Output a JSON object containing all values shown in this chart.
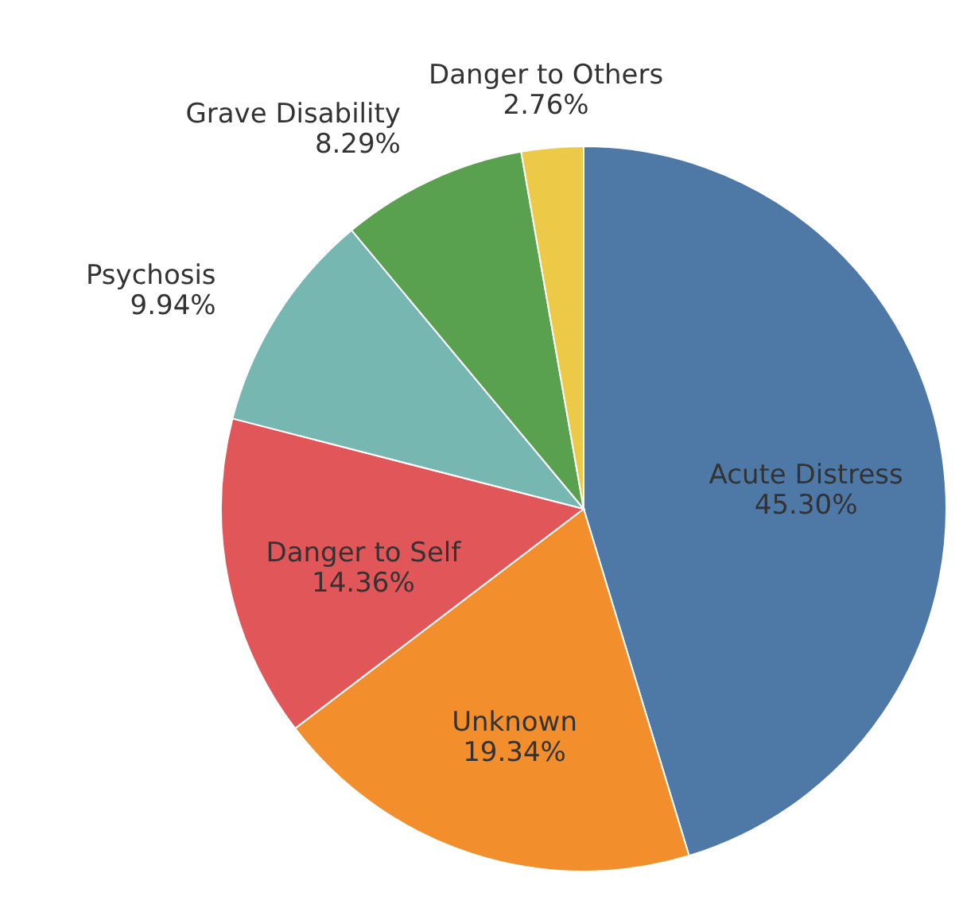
{
  "chart_data": {
    "type": "pie",
    "categories": [
      "Acute Distress",
      "Unknown",
      "Danger to Self",
      "Psychosis",
      "Grave Disability",
      "Danger to Others"
    ],
    "values": [
      45.3,
      19.34,
      14.36,
      9.94,
      8.29,
      2.76
    ],
    "value_labels": [
      "45.30%",
      "19.34%",
      "14.36%",
      "9.94%",
      "8.29%",
      "2.76%"
    ],
    "colors": [
      "#4e79a7",
      "#f28e2b",
      "#e15759",
      "#76b7b2",
      "#59a14f",
      "#edc948"
    ]
  }
}
